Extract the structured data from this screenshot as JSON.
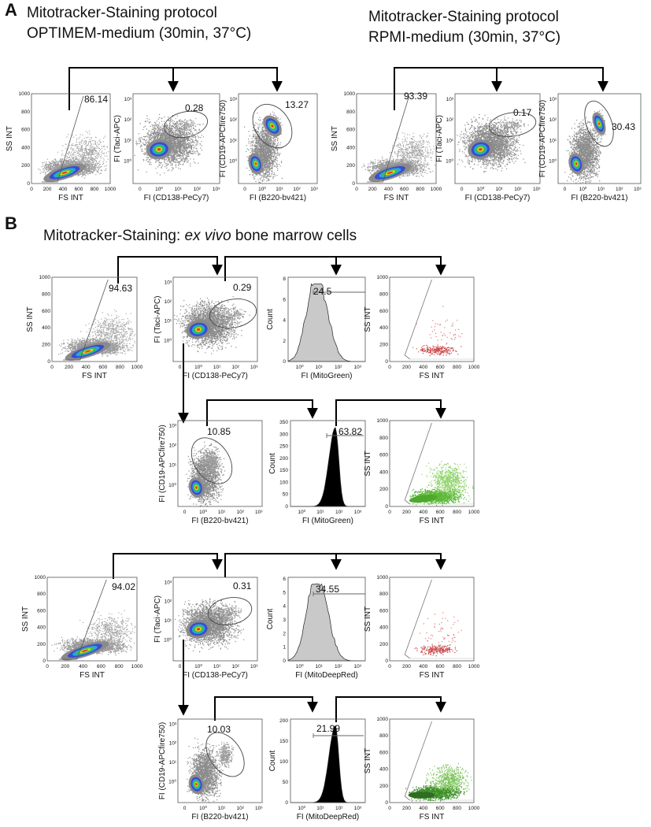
{
  "panel_a": {
    "letter": "A",
    "left_title_line1": "Mitotracker-Staining protocol",
    "left_title_line2": "OPTIMEM-medium (30min, 37°C)",
    "right_title_line1": "Mitotracker-Staining protocol",
    "right_title_line2": "RPMI-medium (30min, 37°C)"
  },
  "panel_b": {
    "letter": "B",
    "title_prefix": "Mitotracker-Staining: ",
    "title_italic": "ex vivo",
    "title_suffix": " bone marrow cells"
  },
  "labels": {
    "ss_int": "SS INT",
    "fs_int": "FS INT",
    "taci": "FI (Taci-APC)",
    "cd138": "FI (CD138-PeCy7)",
    "cd19": "FI (CD19-APCfire750)",
    "b220": "FI (B220-bv421)",
    "count": "Count",
    "mitogreen": "FI (MitoGreen)",
    "mitodeepred": "FI (MitoDeepRed)"
  },
  "ticks": {
    "linear": [
      "0",
      "200",
      "400",
      "600",
      "800",
      "1000"
    ],
    "log_x": [
      "0",
      "10⁰",
      "10¹",
      "10²",
      "10³"
    ],
    "log_y": [
      "10⁰",
      "10¹",
      "10²",
      "10³"
    ],
    "hist_green_y": [
      "0",
      "2",
      "4",
      "6",
      "8"
    ],
    "hist_black_y": [
      "0",
      "50",
      "100",
      "150",
      "200",
      "250",
      "300",
      "350"
    ],
    "hist_red_y": [
      "0",
      "1",
      "2",
      "3",
      "4",
      "5",
      "6"
    ],
    "hist_black2_y": [
      "0",
      "50",
      "100",
      "150",
      "200"
    ]
  },
  "chart_data": [
    {
      "id": "a1",
      "type": "scatter",
      "panel": "A",
      "xlabel": "FS INT",
      "ylabel": "SS INT",
      "xlim": [
        0,
        1000
      ],
      "ylim": [
        0,
        1000
      ],
      "gate_percent": "86.14"
    },
    {
      "id": "a2",
      "type": "scatter",
      "panel": "A",
      "xlabel": "FI (CD138-PeCy7)",
      "ylabel": "FI (Taci-APC)",
      "gate_percent": "0.28"
    },
    {
      "id": "a3",
      "type": "scatter",
      "panel": "A",
      "xlabel": "FI (B220-bv421)",
      "ylabel": "FI (CD19-APCfire750)",
      "gate_percent": "13.27"
    },
    {
      "id": "a4",
      "type": "scatter",
      "panel": "A",
      "xlabel": "FS INT",
      "ylabel": "SS INT",
      "xlim": [
        0,
        1000
      ],
      "ylim": [
        0,
        1000
      ],
      "gate_percent": "93.39"
    },
    {
      "id": "a5",
      "type": "scatter",
      "panel": "A",
      "xlabel": "FI (CD138-PeCy7)",
      "ylabel": "FI (Taci-APC)",
      "gate_percent": "0.17"
    },
    {
      "id": "a6",
      "type": "scatter",
      "panel": "A",
      "xlabel": "FI (B220-bv421)",
      "ylabel": "FI (CD19-APCfire750)",
      "gate_percent": "30.43"
    },
    {
      "id": "b1",
      "type": "scatter",
      "panel": "B",
      "xlabel": "FS INT",
      "ylabel": "SS INT",
      "xlim": [
        0,
        1000
      ],
      "ylim": [
        0,
        1000
      ],
      "gate_percent": "94.63"
    },
    {
      "id": "b2",
      "type": "scatter",
      "panel": "B",
      "xlabel": "FI (CD138-PeCy7)",
      "ylabel": "FI (Taci-APC)",
      "gate_percent": "0.29"
    },
    {
      "id": "b3",
      "type": "histogram",
      "panel": "B",
      "xlabel": "FI (MitoGreen)",
      "ylabel": "Count",
      "ylim": [
        0,
        8
      ],
      "gate_percent": "24.5"
    },
    {
      "id": "b4",
      "type": "scatter",
      "panel": "B",
      "xlabel": "FS INT",
      "ylabel": "SS INT",
      "xlim": [
        0,
        1000
      ],
      "ylim": [
        0,
        1000
      ]
    },
    {
      "id": "b5",
      "type": "scatter",
      "panel": "B",
      "xlabel": "FI (B220-bv421)",
      "ylabel": "FI (CD19-APCfire750)",
      "gate_percent": "10.85"
    },
    {
      "id": "b6",
      "type": "histogram",
      "panel": "B",
      "xlabel": "FI (MitoGreen)",
      "ylabel": "Count",
      "ylim": [
        0,
        350
      ],
      "gate_percent": "63.82"
    },
    {
      "id": "b7",
      "type": "scatter",
      "panel": "B",
      "xlabel": "FS INT",
      "ylabel": "SS INT",
      "xlim": [
        0,
        1000
      ],
      "ylim": [
        0,
        1000
      ]
    },
    {
      "id": "b8",
      "type": "scatter",
      "panel": "B",
      "xlabel": "FS INT",
      "ylabel": "SS INT",
      "xlim": [
        0,
        1000
      ],
      "ylim": [
        0,
        1000
      ],
      "gate_percent": "94.02"
    },
    {
      "id": "b9",
      "type": "scatter",
      "panel": "B",
      "xlabel": "FI (CD138-PeCy7)",
      "ylabel": "FI (Taci-APC)",
      "gate_percent": "0.31"
    },
    {
      "id": "b10",
      "type": "histogram",
      "panel": "B",
      "xlabel": "FI (MitoDeepRed)",
      "ylabel": "Count",
      "ylim": [
        0,
        6
      ],
      "gate_percent": "34.55"
    },
    {
      "id": "b11",
      "type": "scatter",
      "panel": "B",
      "xlabel": "FS INT",
      "ylabel": "SS INT",
      "xlim": [
        0,
        1000
      ],
      "ylim": [
        0,
        1000
      ]
    },
    {
      "id": "b12",
      "type": "scatter",
      "panel": "B",
      "xlabel": "FI (B220-bv421)",
      "ylabel": "FI (CD19-APCfire750)",
      "gate_percent": "10.03"
    },
    {
      "id": "b13",
      "type": "histogram",
      "panel": "B",
      "xlabel": "FI (MitoDeepRed)",
      "ylabel": "Count",
      "ylim": [
        0,
        200
      ],
      "gate_percent": "21.99"
    },
    {
      "id": "b14",
      "type": "scatter",
      "panel": "B",
      "xlabel": "FS INT",
      "ylabel": "SS INT",
      "xlim": [
        0,
        1000
      ],
      "ylim": [
        0,
        1000
      ]
    }
  ]
}
